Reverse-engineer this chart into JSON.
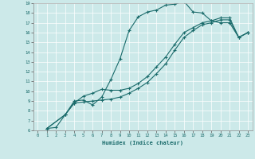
{
  "xlabel": "Humidex (Indice chaleur)",
  "xlim": [
    -0.5,
    23.5
  ],
  "ylim": [
    6,
    19
  ],
  "xticks": [
    0,
    1,
    2,
    3,
    4,
    5,
    6,
    7,
    8,
    9,
    10,
    11,
    12,
    13,
    14,
    15,
    16,
    17,
    18,
    19,
    20,
    21,
    22,
    23
  ],
  "yticks": [
    6,
    7,
    8,
    9,
    10,
    11,
    12,
    13,
    14,
    15,
    16,
    17,
    18,
    19
  ],
  "bg_color": "#cce9e9",
  "line_color": "#1a6b6b",
  "grid_color": "#ffffff",
  "curve1_x": [
    1,
    2,
    3,
    4,
    5,
    6,
    7,
    8,
    9,
    10,
    11,
    12,
    13,
    14,
    15,
    16,
    17,
    18,
    19,
    20,
    21,
    22,
    23
  ],
  "curve1_y": [
    6.2,
    6.3,
    7.6,
    9.0,
    9.1,
    8.6,
    9.4,
    11.2,
    13.3,
    16.2,
    17.6,
    18.1,
    18.3,
    18.8,
    18.9,
    19.2,
    18.1,
    18.0,
    17.2,
    17.0,
    17.0,
    15.5,
    16.0
  ],
  "curve2_x": [
    1,
    3,
    4,
    5,
    6,
    7,
    8,
    9,
    10,
    11,
    12,
    13,
    14,
    15,
    16,
    17,
    18,
    19,
    20,
    21,
    22,
    23
  ],
  "curve2_y": [
    6.2,
    7.6,
    8.8,
    9.5,
    9.8,
    10.2,
    10.1,
    10.1,
    10.3,
    10.8,
    11.5,
    12.5,
    13.5,
    14.8,
    16.0,
    16.5,
    17.0,
    17.2,
    17.5,
    17.5,
    15.5,
    16.0
  ],
  "curve3_x": [
    1,
    3,
    4,
    5,
    6,
    7,
    8,
    9,
    10,
    11,
    12,
    13,
    14,
    15,
    16,
    17,
    18,
    19,
    20,
    21,
    22,
    23
  ],
  "curve3_y": [
    6.2,
    7.6,
    8.8,
    8.9,
    9.0,
    9.1,
    9.2,
    9.4,
    9.8,
    10.3,
    10.9,
    11.8,
    12.8,
    14.2,
    15.5,
    16.2,
    16.8,
    17.0,
    17.3,
    17.3,
    15.5,
    16.0
  ]
}
